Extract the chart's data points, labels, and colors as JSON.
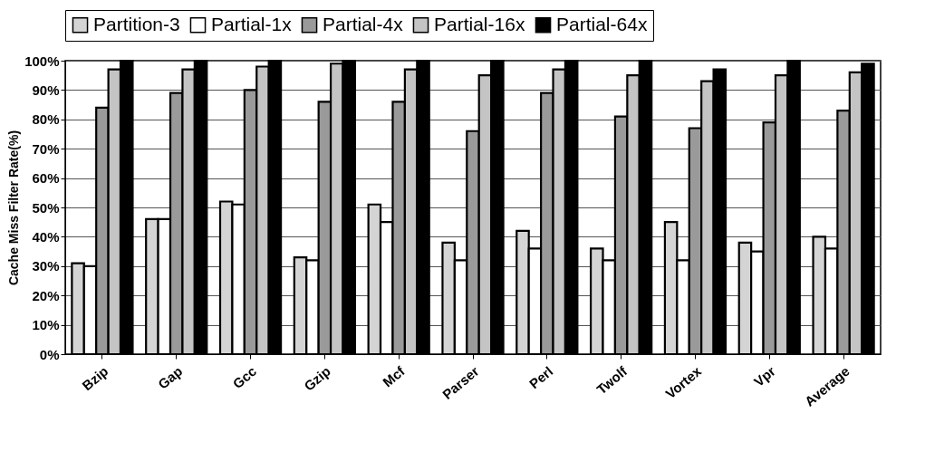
{
  "chart_data": {
    "type": "bar",
    "ylabel": "Cache Miss Filter Rate(%)",
    "categories": [
      "Bzip",
      "Gap",
      "Gcc",
      "Gzip",
      "Mcf",
      "Parser",
      "Perl",
      "Twolf",
      "Vortex",
      "Vpr",
      "Average"
    ],
    "series": [
      {
        "name": "Partition-3",
        "color": "#d4d4d4",
        "values": [
          31,
          46,
          52,
          33,
          51,
          38,
          42,
          36,
          45,
          38,
          40
        ]
      },
      {
        "name": "Partial-1x",
        "color": "#ffffff",
        "values": [
          30,
          46,
          51,
          32,
          45,
          32,
          36,
          32,
          32,
          35,
          36
        ]
      },
      {
        "name": "Partial-4x",
        "color": "#9a9a9a",
        "values": [
          84,
          89,
          90,
          86,
          86,
          76,
          89,
          81,
          77,
          79,
          83
        ]
      },
      {
        "name": "Partial-16x",
        "color": "#c4c4c4",
        "values": [
          97,
          97,
          98,
          99,
          97,
          95,
          97,
          95,
          93,
          95,
          96
        ]
      },
      {
        "name": "Partial-64x",
        "color": "#000000",
        "values": [
          100,
          100,
          100,
          100,
          100,
          100,
          100,
          100,
          97,
          100,
          99
        ]
      }
    ],
    "ylim": [
      0,
      100
    ],
    "yticks": [
      {
        "value": 0,
        "label": "0%"
      },
      {
        "value": 10,
        "label": "10%"
      },
      {
        "value": 20,
        "label": "20%"
      },
      {
        "value": 30,
        "label": "30%"
      },
      {
        "value": 40,
        "label": "40%"
      },
      {
        "value": 50,
        "label": "50%"
      },
      {
        "value": 60,
        "label": "60%"
      },
      {
        "value": 70,
        "label": "70%"
      },
      {
        "value": 80,
        "label": "80%"
      },
      {
        "value": 90,
        "label": "90%"
      },
      {
        "value": 100,
        "label": "100%"
      }
    ],
    "grid": "y",
    "legend": "top"
  }
}
